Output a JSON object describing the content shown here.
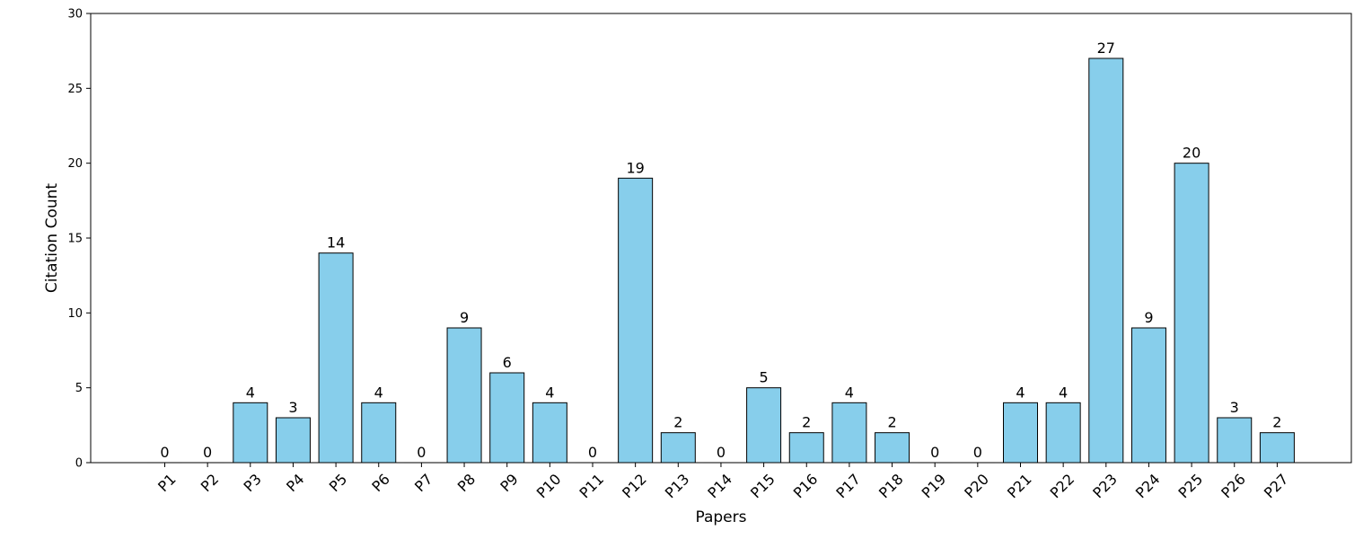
{
  "chart_data": {
    "type": "bar",
    "categories": [
      "P1",
      "P2",
      "P3",
      "P4",
      "P5",
      "P6",
      "P7",
      "P8",
      "P9",
      "P10",
      "P11",
      "P12",
      "P13",
      "P14",
      "P15",
      "P16",
      "P17",
      "P18",
      "P19",
      "P20",
      "P21",
      "P22",
      "P23",
      "P24",
      "P25",
      "P26",
      "P27"
    ],
    "values": [
      0,
      0,
      4,
      3,
      14,
      4,
      0,
      9,
      6,
      4,
      0,
      19,
      2,
      0,
      5,
      2,
      4,
      2,
      0,
      0,
      4,
      4,
      27,
      9,
      20,
      3,
      2
    ],
    "title": "",
    "xlabel": "Papers",
    "ylabel": "Citation Count",
    "ylim": [
      0,
      30
    ],
    "yticks": [
      0,
      5,
      10,
      15,
      20,
      25,
      30
    ],
    "bar_color": "#87ceeb",
    "bar_edge_color": "#000000",
    "grid": false,
    "data_labels": true
  }
}
